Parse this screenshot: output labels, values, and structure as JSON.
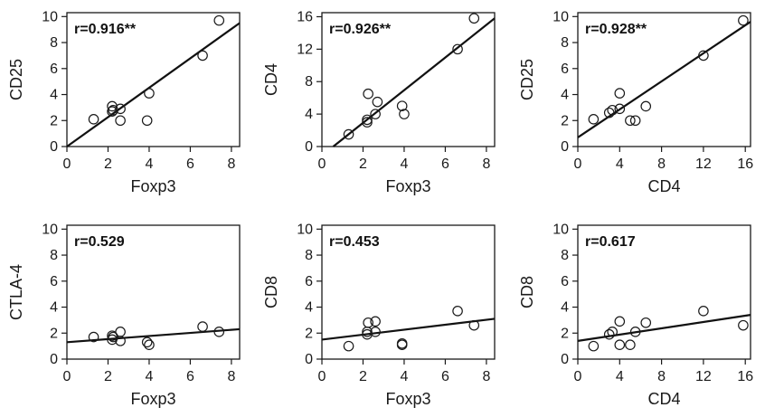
{
  "chart_data": [
    {
      "type": "scatter",
      "title": "",
      "annotation": "r=0.916**",
      "xlabel": "Foxp3",
      "ylabel": "CD25",
      "xlim": [
        0,
        8.4
      ],
      "ylim": [
        0,
        10.3
      ],
      "xticks": [
        0,
        2,
        4,
        6,
        8
      ],
      "yticks": [
        0,
        2,
        4,
        6,
        8,
        10
      ],
      "points": [
        {
          "x": 1.3,
          "y": 2.1
        },
        {
          "x": 2.2,
          "y": 2.7
        },
        {
          "x": 2.2,
          "y": 3.1
        },
        {
          "x": 2.25,
          "y": 2.8
        },
        {
          "x": 2.6,
          "y": 2.9
        },
        {
          "x": 2.6,
          "y": 2.0
        },
        {
          "x": 3.9,
          "y": 2.0
        },
        {
          "x": 4.0,
          "y": 4.1
        },
        {
          "x": 6.6,
          "y": 7.0
        },
        {
          "x": 7.4,
          "y": 9.7
        }
      ],
      "fit": {
        "x": [
          0,
          8.4
        ],
        "y": [
          0,
          9.5
        ]
      }
    },
    {
      "type": "scatter",
      "title": "",
      "annotation": "r=0.926**",
      "xlabel": "Foxp3",
      "ylabel": "CD4",
      "xlim": [
        0,
        8.4
      ],
      "ylim": [
        0,
        16.5
      ],
      "xticks": [
        0,
        2,
        4,
        6,
        8
      ],
      "yticks": [
        0,
        4,
        8,
        12,
        16
      ],
      "points": [
        {
          "x": 1.3,
          "y": 1.5
        },
        {
          "x": 2.2,
          "y": 3.0
        },
        {
          "x": 2.2,
          "y": 3.3
        },
        {
          "x": 2.25,
          "y": 6.5
        },
        {
          "x": 2.6,
          "y": 4.0
        },
        {
          "x": 2.7,
          "y": 5.5
        },
        {
          "x": 3.9,
          "y": 5.0
        },
        {
          "x": 4.0,
          "y": 4.0
        },
        {
          "x": 6.6,
          "y": 12.0
        },
        {
          "x": 7.4,
          "y": 15.8
        }
      ],
      "fit": {
        "x": [
          0.55,
          8.4
        ],
        "y": [
          0,
          15.8
        ]
      }
    },
    {
      "type": "scatter",
      "title": "",
      "annotation": "r=0.928**",
      "xlabel": "CD4",
      "ylabel": "CD25",
      "xlim": [
        0,
        16.5
      ],
      "ylim": [
        0,
        10.3
      ],
      "xticks": [
        0,
        4,
        8,
        12,
        16
      ],
      "yticks": [
        0,
        2,
        4,
        6,
        8,
        10
      ],
      "points": [
        {
          "x": 1.5,
          "y": 2.1
        },
        {
          "x": 3.0,
          "y": 2.6
        },
        {
          "x": 3.3,
          "y": 2.8
        },
        {
          "x": 4.0,
          "y": 2.9
        },
        {
          "x": 4.0,
          "y": 4.1
        },
        {
          "x": 5.0,
          "y": 2.0
        },
        {
          "x": 5.5,
          "y": 2.0
        },
        {
          "x": 6.5,
          "y": 3.1
        },
        {
          "x": 12.0,
          "y": 7.0
        },
        {
          "x": 15.8,
          "y": 9.7
        }
      ],
      "fit": {
        "x": [
          0,
          16.5
        ],
        "y": [
          0.7,
          9.6
        ]
      }
    },
    {
      "type": "scatter",
      "title": "",
      "annotation": "r=0.529",
      "xlabel": "Foxp3",
      "ylabel": "CTLA-4",
      "xlim": [
        0,
        8.4
      ],
      "ylim": [
        0,
        10.3
      ],
      "xticks": [
        0,
        2,
        4,
        6,
        8
      ],
      "yticks": [
        0,
        2,
        4,
        6,
        8,
        10
      ],
      "points": [
        {
          "x": 1.3,
          "y": 1.7
        },
        {
          "x": 2.2,
          "y": 1.5
        },
        {
          "x": 2.2,
          "y": 1.8
        },
        {
          "x": 2.25,
          "y": 1.7
        },
        {
          "x": 2.6,
          "y": 2.1
        },
        {
          "x": 2.6,
          "y": 1.4
        },
        {
          "x": 3.9,
          "y": 1.3
        },
        {
          "x": 4.0,
          "y": 1.1
        },
        {
          "x": 6.6,
          "y": 2.5
        },
        {
          "x": 7.4,
          "y": 2.1
        }
      ],
      "fit": {
        "x": [
          0,
          8.4
        ],
        "y": [
          1.3,
          2.3
        ]
      }
    },
    {
      "type": "scatter",
      "title": "",
      "annotation": "r=0.453",
      "xlabel": "Foxp3",
      "ylabel": "CD8",
      "xlim": [
        0,
        8.4
      ],
      "ylim": [
        0,
        10.3
      ],
      "xticks": [
        0,
        2,
        4,
        6,
        8
      ],
      "yticks": [
        0,
        2,
        4,
        6,
        8,
        10
      ],
      "points": [
        {
          "x": 1.3,
          "y": 1.0
        },
        {
          "x": 2.2,
          "y": 1.9
        },
        {
          "x": 2.2,
          "y": 2.1
        },
        {
          "x": 2.25,
          "y": 2.8
        },
        {
          "x": 2.6,
          "y": 2.9
        },
        {
          "x": 2.6,
          "y": 2.1
        },
        {
          "x": 3.9,
          "y": 1.1
        },
        {
          "x": 3.9,
          "y": 1.2
        },
        {
          "x": 6.6,
          "y": 3.7
        },
        {
          "x": 7.4,
          "y": 2.6
        }
      ],
      "fit": {
        "x": [
          0,
          8.4
        ],
        "y": [
          1.5,
          3.1
        ]
      }
    },
    {
      "type": "scatter",
      "title": "",
      "annotation": "r=0.617",
      "xlabel": "CD4",
      "ylabel": "CD8",
      "xlim": [
        0,
        16.5
      ],
      "ylim": [
        0,
        10.3
      ],
      "xticks": [
        0,
        4,
        8,
        12,
        16
      ],
      "yticks": [
        0,
        2,
        4,
        6,
        8,
        10
      ],
      "points": [
        {
          "x": 1.5,
          "y": 1.0
        },
        {
          "x": 3.0,
          "y": 1.9
        },
        {
          "x": 3.3,
          "y": 2.1
        },
        {
          "x": 4.0,
          "y": 2.9
        },
        {
          "x": 4.0,
          "y": 1.1
        },
        {
          "x": 5.0,
          "y": 1.1
        },
        {
          "x": 5.5,
          "y": 2.1
        },
        {
          "x": 6.5,
          "y": 2.8
        },
        {
          "x": 12.0,
          "y": 3.7
        },
        {
          "x": 15.8,
          "y": 2.6
        }
      ],
      "fit": {
        "x": [
          0,
          16.5
        ],
        "y": [
          1.4,
          3.4
        ]
      }
    }
  ],
  "colors": {
    "axis": "#1a1a1a",
    "marker_stroke": "#1a1a1a",
    "fit_line": "#111111"
  }
}
